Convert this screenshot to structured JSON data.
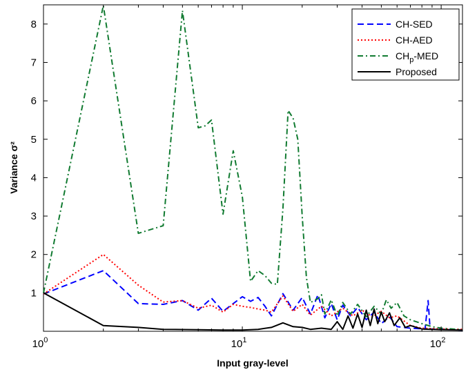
{
  "chart_data": {
    "type": "line",
    "title": "",
    "xlabel": "Input gray-level",
    "ylabel": "Variance σ²",
    "xlim": [
      1,
      128
    ],
    "ylim": [
      0,
      8.5
    ],
    "xscale": "log",
    "grid": false,
    "legend_position": "top-right",
    "x_ticks": [
      {
        "value": 1,
        "base": "10",
        "exp": "0"
      },
      {
        "value": 10,
        "base": "10",
        "exp": "1"
      },
      {
        "value": 100,
        "base": "10",
        "exp": "2"
      }
    ],
    "y_ticks": [
      {
        "value": 1,
        "label": "1"
      },
      {
        "value": 2,
        "label": "2"
      },
      {
        "value": 3,
        "label": "3"
      },
      {
        "value": 4,
        "label": "4"
      },
      {
        "value": 5,
        "label": "5"
      },
      {
        "value": 6,
        "label": "6"
      },
      {
        "value": 7,
        "label": "7"
      },
      {
        "value": 8,
        "label": "8"
      }
    ],
    "series": [
      {
        "name": "CH-SED",
        "color": "#0000ff",
        "dash": "dashed",
        "points": [
          [
            1,
            0.97
          ],
          [
            2,
            1.58
          ],
          [
            3,
            0.72
          ],
          [
            4,
            0.7
          ],
          [
            5,
            0.8
          ],
          [
            6,
            0.55
          ],
          [
            7,
            0.86
          ],
          [
            8,
            0.52
          ],
          [
            10,
            0.9
          ],
          [
            11,
            0.78
          ],
          [
            12,
            0.88
          ],
          [
            13,
            0.65
          ],
          [
            14,
            0.4
          ],
          [
            16,
            0.98
          ],
          [
            18,
            0.55
          ],
          [
            20,
            0.88
          ],
          [
            22,
            0.45
          ],
          [
            24,
            0.95
          ],
          [
            26,
            0.35
          ],
          [
            28,
            0.72
          ],
          [
            30,
            0.3
          ],
          [
            32,
            0.68
          ],
          [
            35,
            0.4
          ],
          [
            38,
            0.62
          ],
          [
            42,
            0.3
          ],
          [
            46,
            0.5
          ],
          [
            50,
            0.2
          ],
          [
            55,
            0.38
          ],
          [
            60,
            0.12
          ],
          [
            70,
            0.08
          ],
          [
            83,
            0.06
          ],
          [
            86,
            0.8
          ],
          [
            88,
            0.06
          ],
          [
            100,
            0.05
          ],
          [
            128,
            0.03
          ]
        ]
      },
      {
        "name": "CH-AED",
        "color": "#ff0000",
        "dash": "dotted",
        "points": [
          [
            1,
            0.97
          ],
          [
            2,
            2.0
          ],
          [
            3,
            1.2
          ],
          [
            4,
            0.76
          ],
          [
            5,
            0.8
          ],
          [
            6,
            0.6
          ],
          [
            7,
            0.68
          ],
          [
            8,
            0.5
          ],
          [
            9,
            0.7
          ],
          [
            10,
            0.65
          ],
          [
            11,
            0.62
          ],
          [
            12,
            0.58
          ],
          [
            13,
            0.55
          ],
          [
            14,
            0.5
          ],
          [
            16,
            0.92
          ],
          [
            18,
            0.52
          ],
          [
            20,
            0.7
          ],
          [
            22,
            0.42
          ],
          [
            25,
            0.65
          ],
          [
            28,
            0.4
          ],
          [
            32,
            0.6
          ],
          [
            36,
            0.4
          ],
          [
            40,
            0.55
          ],
          [
            45,
            0.38
          ],
          [
            50,
            0.52
          ],
          [
            55,
            0.35
          ],
          [
            60,
            0.4
          ],
          [
            70,
            0.15
          ],
          [
            80,
            0.08
          ],
          [
            100,
            0.06
          ],
          [
            128,
            0.05
          ]
        ]
      },
      {
        "name": "CHp-MED",
        "color": "#107a30",
        "dash": "dashdot",
        "points": [
          [
            1,
            1.0
          ],
          [
            2,
            8.48
          ],
          [
            3,
            2.55
          ],
          [
            4,
            2.75
          ],
          [
            5,
            8.35
          ],
          [
            6,
            5.3
          ],
          [
            6.5,
            5.35
          ],
          [
            7,
            5.5
          ],
          [
            8,
            3.05
          ],
          [
            9,
            4.7
          ],
          [
            10,
            3.5
          ],
          [
            11,
            1.3
          ],
          [
            12,
            1.58
          ],
          [
            13,
            1.45
          ],
          [
            14,
            1.25
          ],
          [
            15,
            1.22
          ],
          [
            16,
            3.2
          ],
          [
            17,
            5.75
          ],
          [
            18,
            5.55
          ],
          [
            19,
            5.0
          ],
          [
            20,
            3.0
          ],
          [
            21,
            1.4
          ],
          [
            22,
            0.75
          ],
          [
            24,
            0.85
          ],
          [
            25,
            0.95
          ],
          [
            26,
            0.45
          ],
          [
            28,
            0.82
          ],
          [
            30,
            0.4
          ],
          [
            32,
            0.75
          ],
          [
            35,
            0.45
          ],
          [
            38,
            0.7
          ],
          [
            42,
            0.38
          ],
          [
            46,
            0.65
          ],
          [
            50,
            0.45
          ],
          [
            53,
            0.82
          ],
          [
            56,
            0.6
          ],
          [
            60,
            0.75
          ],
          [
            65,
            0.4
          ],
          [
            70,
            0.3
          ],
          [
            80,
            0.2
          ],
          [
            90,
            0.12
          ],
          [
            100,
            0.08
          ],
          [
            128,
            0.04
          ]
        ]
      },
      {
        "name": "Proposed",
        "color": "#000000",
        "dash": "solid",
        "points": [
          [
            1,
            1.0
          ],
          [
            2,
            0.15
          ],
          [
            3,
            0.1
          ],
          [
            4,
            0.05
          ],
          [
            6,
            0.04
          ],
          [
            8,
            0.03
          ],
          [
            10,
            0.03
          ],
          [
            12,
            0.05
          ],
          [
            14,
            0.1
          ],
          [
            16,
            0.22
          ],
          [
            18,
            0.12
          ],
          [
            20,
            0.1
          ],
          [
            22,
            0.05
          ],
          [
            25,
            0.08
          ],
          [
            28,
            0.05
          ],
          [
            30,
            0.25
          ],
          [
            32,
            0.05
          ],
          [
            34,
            0.4
          ],
          [
            36,
            0.08
          ],
          [
            38,
            0.45
          ],
          [
            40,
            0.1
          ],
          [
            42,
            0.55
          ],
          [
            44,
            0.15
          ],
          [
            46,
            0.58
          ],
          [
            48,
            0.2
          ],
          [
            50,
            0.5
          ],
          [
            52,
            0.25
          ],
          [
            55,
            0.48
          ],
          [
            58,
            0.15
          ],
          [
            62,
            0.35
          ],
          [
            66,
            0.1
          ],
          [
            70,
            0.15
          ],
          [
            80,
            0.06
          ],
          [
            100,
            0.04
          ],
          [
            128,
            0.03
          ]
        ]
      }
    ]
  }
}
